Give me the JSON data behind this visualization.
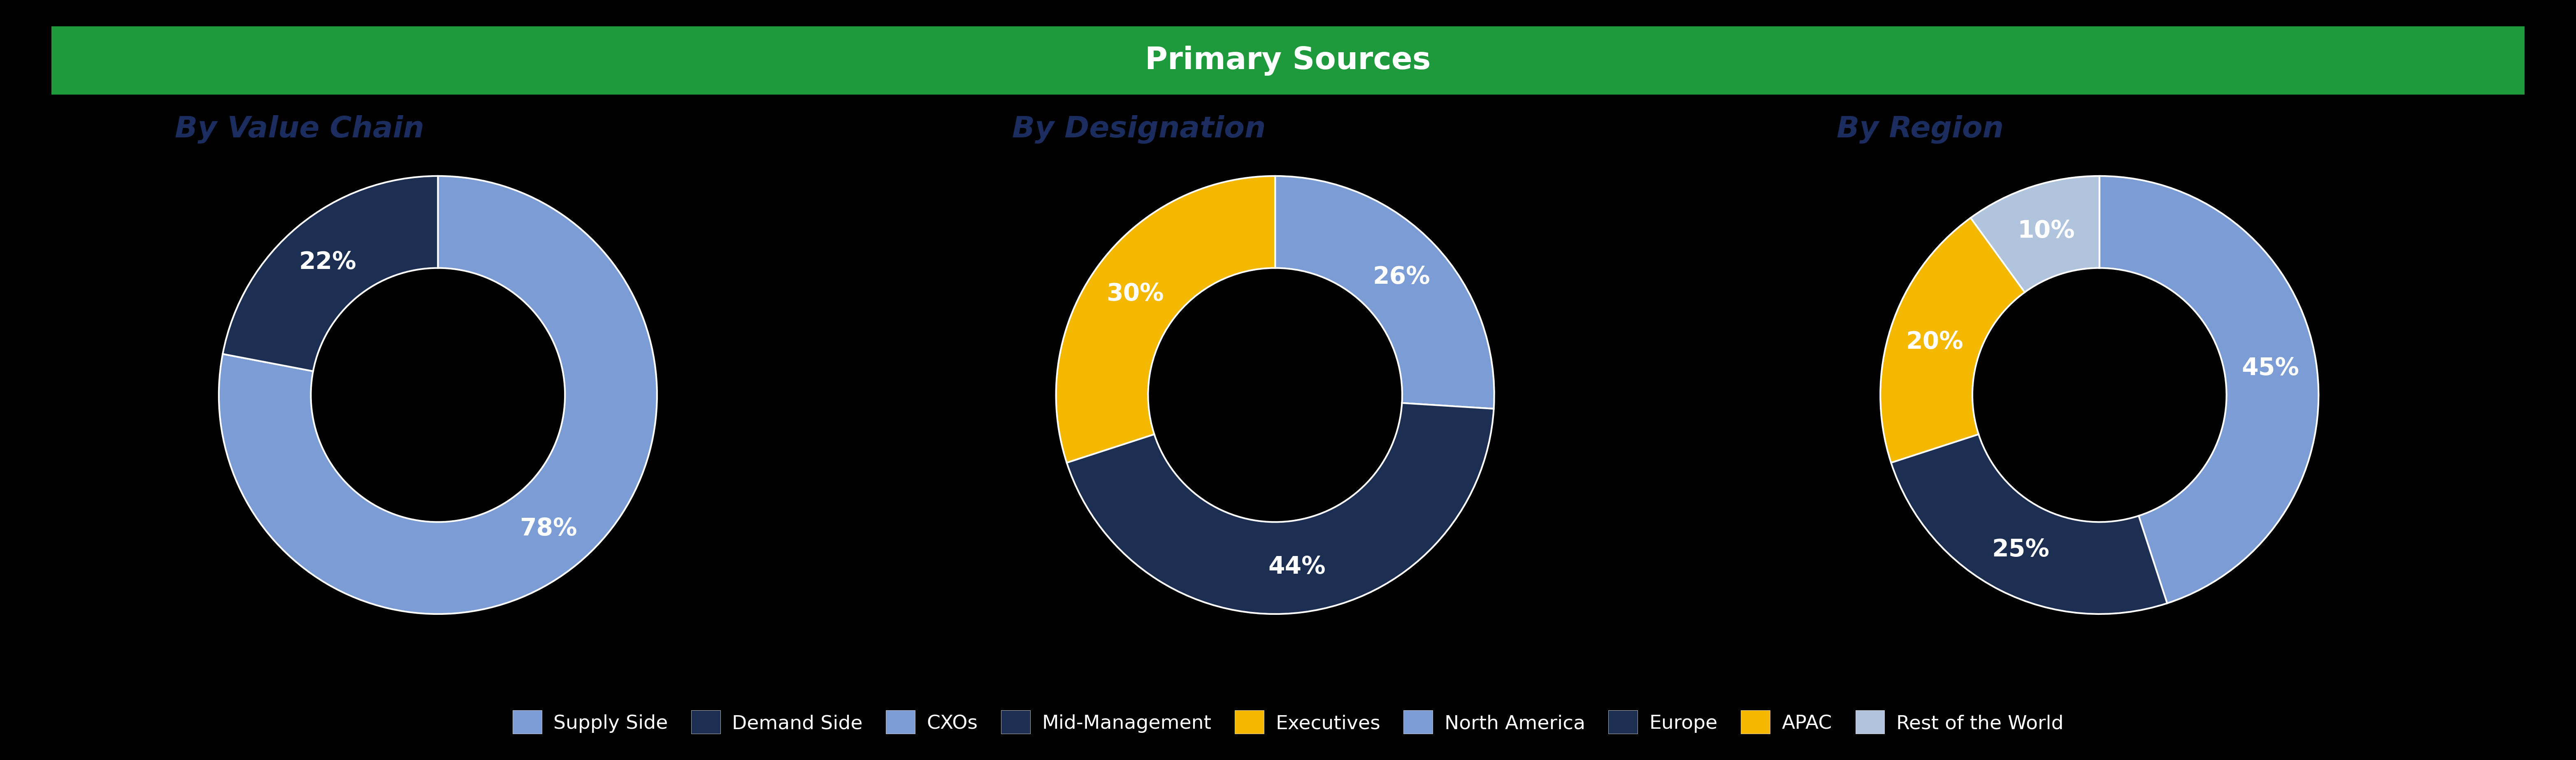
{
  "title": "Primary Sources",
  "title_bg_color": "#1E9A3C",
  "title_text_color": "#FFFFFF",
  "background_color": "#000000",
  "subtitle_color": "#1B2D5E",
  "chart1_title": "By Value Chain",
  "chart1_values": [
    78,
    22
  ],
  "chart1_labels": [
    "78%",
    "22%"
  ],
  "chart1_colors": [
    "#7B9CD4",
    "#1C2E52"
  ],
  "chart1_legend": [
    "Supply Side",
    "Demand Side"
  ],
  "chart2_title": "By Designation",
  "chart2_values": [
    26,
    44,
    30
  ],
  "chart2_labels": [
    "26%",
    "44%",
    "30%"
  ],
  "chart2_colors": [
    "#7B9CD4",
    "#1C2E52",
    "#F5B800"
  ],
  "chart2_legend": [
    "CXOs",
    "Mid-Management",
    "Executives"
  ],
  "chart3_title": "By Region",
  "chart3_values": [
    45,
    25,
    20,
    10
  ],
  "chart3_labels": [
    "45%",
    "25%",
    "20%",
    "10%"
  ],
  "chart3_colors": [
    "#7B9CD4",
    "#1C2E52",
    "#F5B800",
    "#B0C4DE"
  ],
  "chart3_legend": [
    "North America",
    "Europe",
    "APAC",
    "Rest of the World"
  ],
  "donut_width": 0.42,
  "label_fontsize": 42,
  "title_fontsize": 54,
  "subtitle_fontsize": 52,
  "legend_fontsize": 34,
  "legend_marker_size": 28
}
